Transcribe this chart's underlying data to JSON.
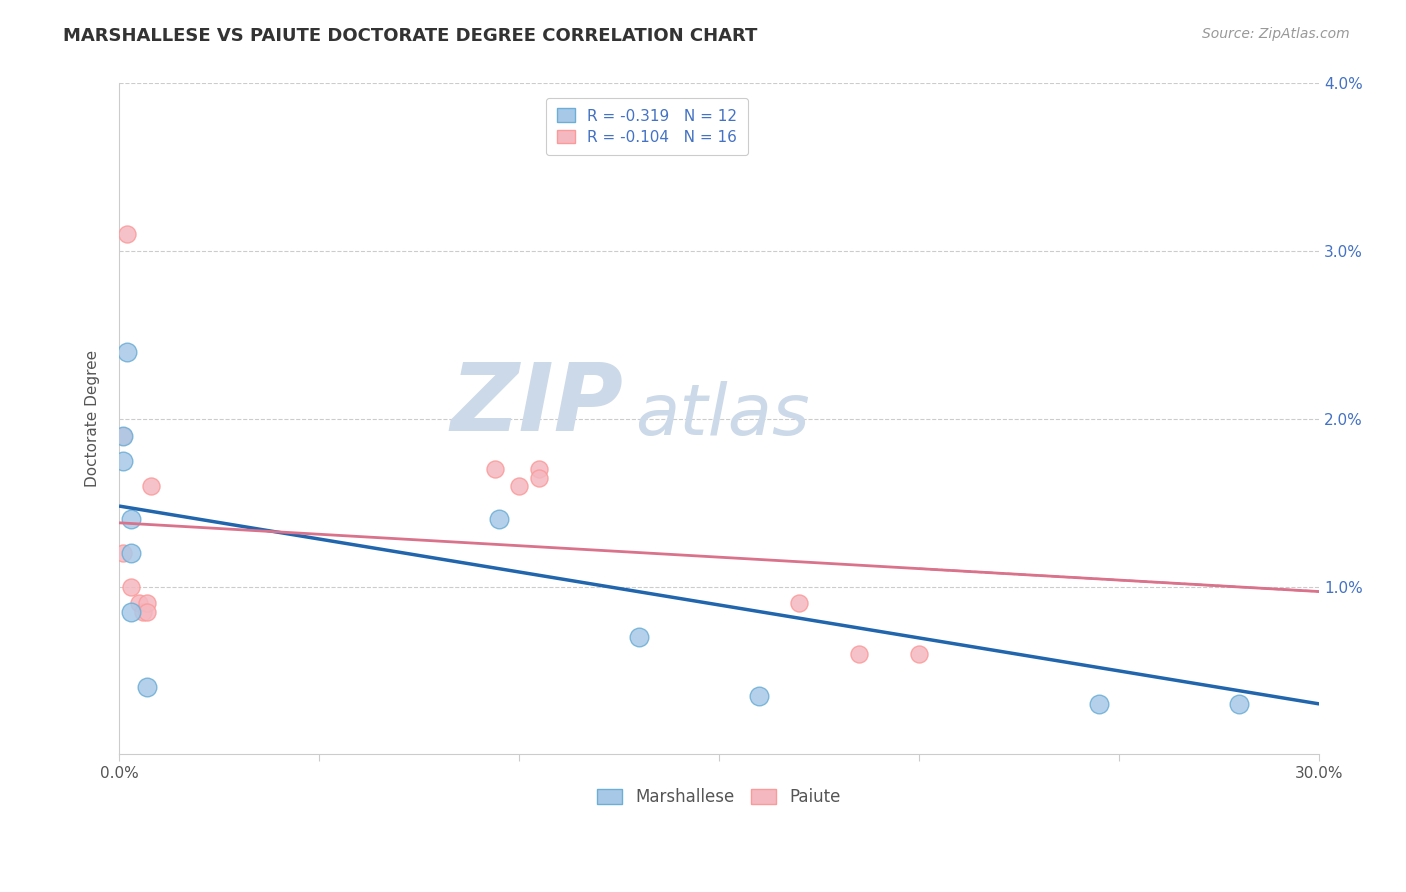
{
  "title": "MARSHALLESE VS PAIUTE DOCTORATE DEGREE CORRELATION CHART",
  "source": "Source: ZipAtlas.com",
  "ylabel": "Doctorate Degree",
  "xlim": [
    0.0,
    0.3
  ],
  "ylim": [
    0.0,
    0.04
  ],
  "ytick_positions": [
    0.01,
    0.02,
    0.03,
    0.04
  ],
  "ytick_labels": [
    "1.0%",
    "2.0%",
    "3.0%",
    "4.0%"
  ],
  "xtick_positions": [
    0.0,
    0.05,
    0.1,
    0.15,
    0.2,
    0.25,
    0.3
  ],
  "xtick_labels": [
    "0.0%",
    "",
    "",
    "",
    "",
    "",
    "30.0%"
  ],
  "grid_color": "#cccccc",
  "background": "#ffffff",
  "ytick_color": "#4472c4",
  "xtick_color": "#555555",
  "marshallese_x": [
    0.001,
    0.001,
    0.002,
    0.003,
    0.003,
    0.003,
    0.007,
    0.095,
    0.13,
    0.16,
    0.245,
    0.28
  ],
  "marshallese_y": [
    0.019,
    0.0175,
    0.024,
    0.014,
    0.012,
    0.0085,
    0.004,
    0.014,
    0.007,
    0.0035,
    0.003,
    0.003
  ],
  "paiute_x": [
    0.001,
    0.001,
    0.002,
    0.003,
    0.005,
    0.006,
    0.007,
    0.007,
    0.008,
    0.094,
    0.1,
    0.105,
    0.105,
    0.17,
    0.185,
    0.2
  ],
  "paiute_y": [
    0.019,
    0.012,
    0.031,
    0.01,
    0.009,
    0.0085,
    0.009,
    0.0085,
    0.016,
    0.017,
    0.016,
    0.017,
    0.0165,
    0.009,
    0.006,
    0.006
  ],
  "marshallese_color": "#a8c8e8",
  "paiute_color": "#f4b8c0",
  "marshallese_edge_color": "#6baed6",
  "paiute_edge_color": "#fb9a99",
  "marshallese_line_color": "#2166ac",
  "paiute_line_color": "#d9728a",
  "legend_r_marshallese": "R = -0.319",
  "legend_n_marshallese": "N = 12",
  "legend_r_paiute": "R = -0.104",
  "legend_n_paiute": "N = 16",
  "watermark_zip": "ZIP",
  "watermark_atlas": "atlas",
  "watermark_color": "#ccd9e8",
  "marshallese_marker_size": 180,
  "paiute_marker_size": 150,
  "trend_marshallese": [
    0.0,
    0.0148,
    0.3,
    0.003
  ],
  "trend_paiute": [
    0.0,
    0.0138,
    0.3,
    0.0097
  ]
}
